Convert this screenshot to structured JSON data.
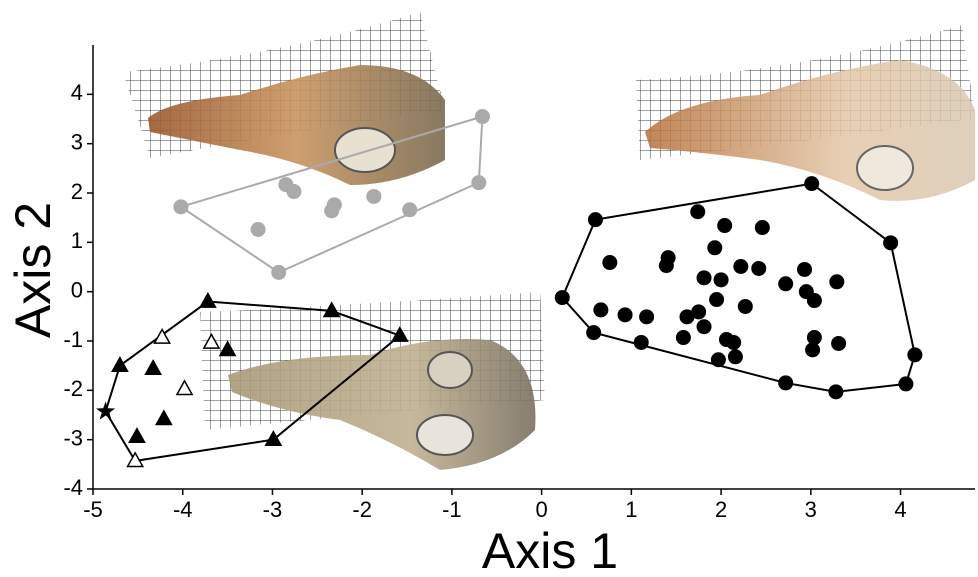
{
  "chart_data": {
    "type": "scatter",
    "xlabel": "Axis 1",
    "ylabel": "Axis 2",
    "xlim": [
      -5,
      4.83
    ],
    "ylim": [
      -4,
      5
    ],
    "xticks": [
      -5,
      -4,
      -3,
      -2,
      -1,
      0,
      1,
      2,
      3,
      4
    ],
    "yticks": [
      -4,
      -3,
      -2,
      -1,
      0,
      1,
      2,
      3,
      4
    ],
    "series": [
      {
        "color": "#aaaaaa",
        "marker": "circle",
        "x": [
          -0.66,
          -0.7,
          -1.47,
          -1.87,
          -2.31,
          -2.34,
          -2.76,
          -2.85,
          -3.16,
          -2.93,
          -4.02
        ],
        "values": [
          3.55,
          2.21,
          1.66,
          1.93,
          1.76,
          1.64,
          2.03,
          2.17,
          1.26,
          0.39,
          1.72
        ]
      },
      {
        "color": "#000000",
        "marker": "circle",
        "x": [
          3.01,
          3.89,
          4.16,
          4.06,
          3.28,
          2.72,
          0.6,
          0.23,
          0.58,
          0.66,
          1.11,
          0.93,
          1.17,
          0.76,
          1.74,
          2.04,
          2.46,
          1.41,
          1.39,
          1.93,
          1.81,
          2.0,
          2.22,
          2.42,
          1.95,
          1.62,
          1.75,
          1.58,
          1.81,
          2.27,
          2.06,
          2.14,
          2.16,
          1.97,
          2.72,
          2.93,
          2.95,
          3.04,
          3.29,
          3.04,
          3.02,
          3.31
        ],
        "values": [
          2.19,
          0.99,
          -1.28,
          -1.87,
          -2.03,
          -1.85,
          1.46,
          -0.12,
          -0.83,
          -0.37,
          -1.03,
          -0.47,
          -0.51,
          0.59,
          1.62,
          1.34,
          1.3,
          0.69,
          0.53,
          0.89,
          0.28,
          0.24,
          0.51,
          0.47,
          -0.16,
          -0.51,
          -0.41,
          -0.93,
          -0.71,
          -0.3,
          -0.97,
          -1.03,
          -1.32,
          -1.38,
          0.16,
          0.45,
          0.0,
          -0.18,
          0.2,
          -0.93,
          -1.18,
          -1.05
        ]
      },
      {
        "color": "#000000",
        "marker": "triangle",
        "x": [
          -3.72,
          -1.58,
          -2.34,
          -3.5,
          -4.7,
          -4.33,
          -4.51,
          -4.21,
          -2.99
        ],
        "values": [
          -0.2,
          -0.89,
          -0.39,
          -1.18,
          -1.5,
          -1.56,
          -2.94,
          -2.58,
          -3.0
        ]
      },
      {
        "color": "#000000",
        "marker": "triangle-open",
        "x": [
          -4.23,
          -3.68,
          -3.98,
          -4.53
        ],
        "values": [
          -0.93,
          -1.03,
          -1.97,
          -3.43
        ]
      },
      {
        "color": "#000000",
        "marker": "star",
        "x": [
          -4.86
        ],
        "values": [
          -2.43
        ]
      }
    ],
    "hulls": [
      {
        "series": [
          0
        ],
        "color": "#aaaaaa"
      },
      {
        "series": [
          1
        ],
        "color": "#000000"
      },
      {
        "series": [
          2,
          3,
          4
        ],
        "color": "#000000"
      }
    ]
  }
}
